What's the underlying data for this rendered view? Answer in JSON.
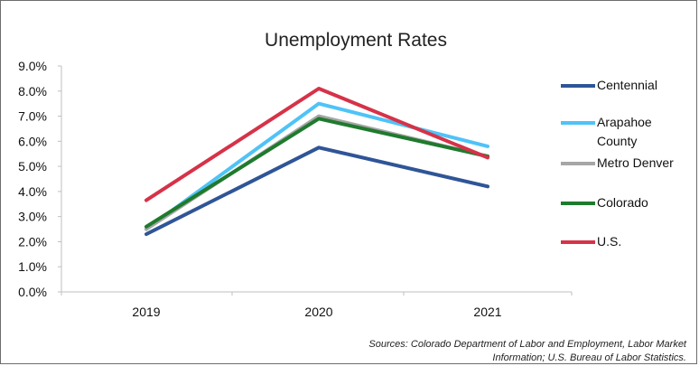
{
  "colors": {
    "background": "#ffffff",
    "axis": "#bfbfbf",
    "text": "#111111"
  },
  "chart_data": {
    "type": "line",
    "title": "Unemployment Rates",
    "categories": [
      "2019",
      "2020",
      "2021"
    ],
    "series": [
      {
        "name": "Centennial",
        "values": [
          2.3,
          5.75,
          4.2
        ],
        "color": "#2f5597",
        "legend_lines": [
          "Centennial"
        ]
      },
      {
        "name": "Arapahoe County",
        "values": [
          2.5,
          7.5,
          5.8
        ],
        "color": "#4fc3f7",
        "legend_lines": [
          "Arapahoe",
          "County"
        ]
      },
      {
        "name": "Metro Denver",
        "values": [
          2.5,
          7.0,
          5.4
        ],
        "color": "#a6a6a6",
        "legend_lines": [
          "Metro Denver"
        ]
      },
      {
        "name": "Colorado",
        "values": [
          2.6,
          6.9,
          5.4
        ],
        "color": "#1f7a2d",
        "legend_lines": [
          "Colorado"
        ]
      },
      {
        "name": "U.S.",
        "values": [
          3.65,
          8.1,
          5.35
        ],
        "color": "#d63248",
        "legend_lines": [
          "U.S."
        ]
      }
    ],
    "y_ticks": [
      "9.0%",
      "8.0%",
      "7.0%",
      "6.0%",
      "5.0%",
      "4.0%",
      "3.0%",
      "2.0%",
      "1.0%",
      "0.0%"
    ],
    "ylim": [
      0,
      9
    ],
    "grid": false,
    "legend_position": "right",
    "source_lines": [
      "Sources: Colorado Department of Labor and Employment, Labor Market",
      "Information; U.S. Bureau of Labor Statistics."
    ]
  }
}
